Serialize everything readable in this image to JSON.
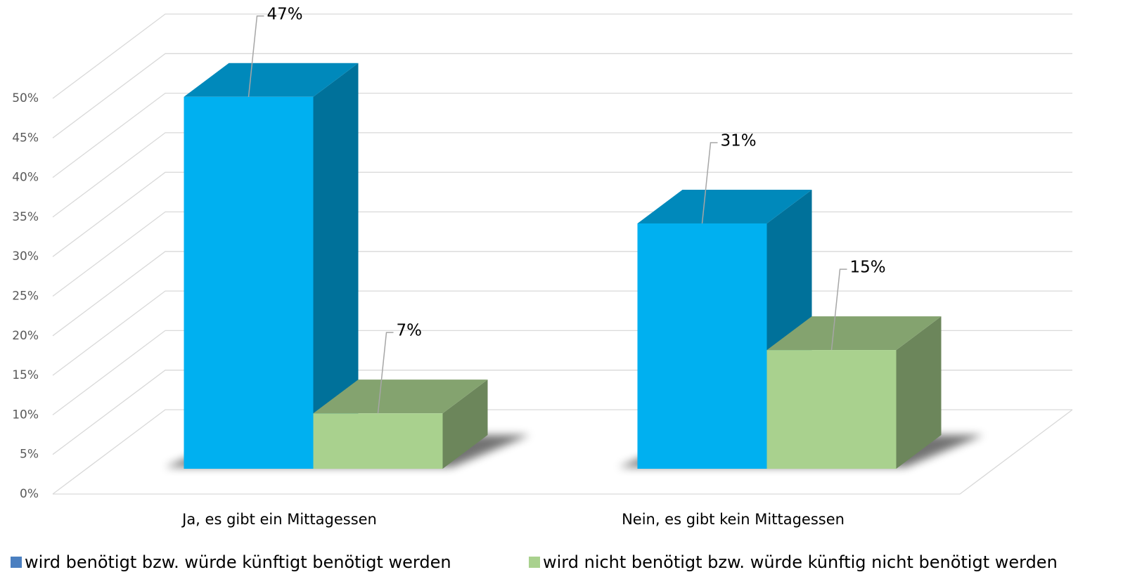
{
  "chart_data": {
    "type": "bar3d",
    "categories": [
      "Ja, es gibt ein Mittagessen",
      "Nein, es gibt kein Mittagessen"
    ],
    "series": [
      {
        "name": "wird benötigt bzw. würde künftigt benötigt werden",
        "color": "#00b0f0",
        "legend_color": "#4a7fc0",
        "values": [
          47,
          31
        ],
        "value_labels": [
          "47%",
          "31%"
        ]
      },
      {
        "name": "wird nicht benötigt bzw. würde künftig nicht benötigt werden",
        "color": "#a9d18e",
        "legend_color": "#a9d18e",
        "values": [
          7,
          15
        ],
        "value_labels": [
          "7%",
          "15%"
        ]
      }
    ],
    "ylim": [
      0,
      50
    ],
    "yticks": [
      {
        "value": 0,
        "label": "0%"
      },
      {
        "value": 5,
        "label": "5%"
      },
      {
        "value": 10,
        "label": "10%"
      },
      {
        "value": 15,
        "label": "15%"
      },
      {
        "value": 20,
        "label": "20%"
      },
      {
        "value": 25,
        "label": "25%"
      },
      {
        "value": 30,
        "label": "30%"
      },
      {
        "value": 35,
        "label": "35%"
      },
      {
        "value": 40,
        "label": "40%"
      },
      {
        "value": 45,
        "label": "45%"
      },
      {
        "value": 50,
        "label": "50%"
      }
    ],
    "grid": true,
    "legend": "bottom"
  }
}
